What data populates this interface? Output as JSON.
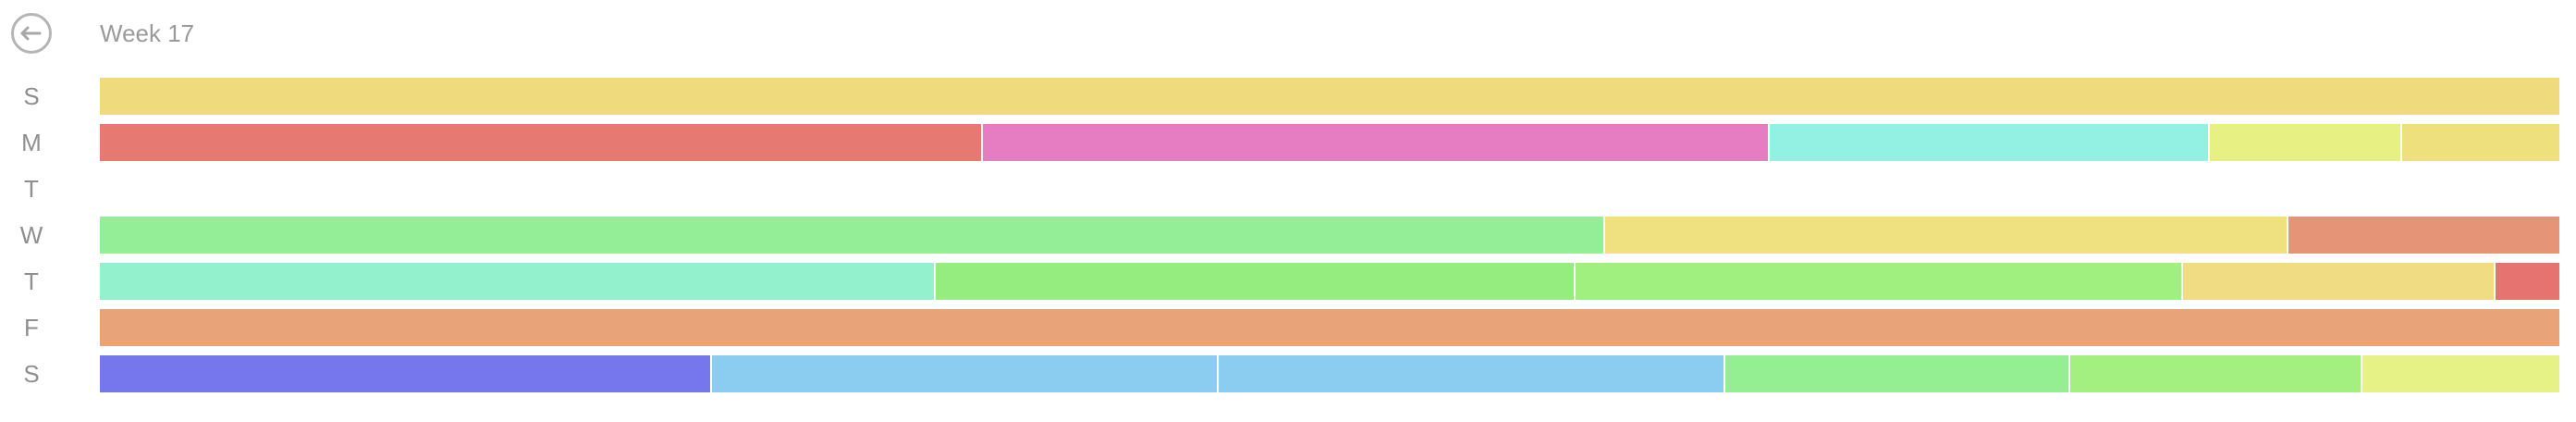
{
  "header": {
    "title": "Week 17",
    "back_icon": "arrow-left-circle-icon"
  },
  "days": [
    {
      "label": "S",
      "segments": [
        {
          "fraction": 1.0,
          "color": "#efdb7d"
        }
      ]
    },
    {
      "label": "M",
      "segments": [
        {
          "fraction": 0.359,
          "color": "#e67a73"
        },
        {
          "fraction": 0.32,
          "color": "#e67dc3"
        },
        {
          "fraction": 0.179,
          "color": "#92f1e2"
        },
        {
          "fraction": 0.078,
          "color": "#e6f083"
        },
        {
          "fraction": 0.064,
          "color": "#efe07e"
        }
      ]
    },
    {
      "label": "T",
      "segments": []
    },
    {
      "label": "W",
      "segments": [
        {
          "fraction": 0.612,
          "color": "#94ee97"
        },
        {
          "fraction": 0.278,
          "color": "#efe080"
        },
        {
          "fraction": 0.11,
          "color": "#e69477"
        }
      ]
    },
    {
      "label": "T",
      "segments": [
        {
          "fraction": 0.34,
          "color": "#94f1cd"
        },
        {
          "fraction": 0.26,
          "color": "#96ed7f"
        },
        {
          "fraction": 0.247,
          "color": "#9ff07e"
        },
        {
          "fraction": 0.127,
          "color": "#f0dc83"
        },
        {
          "fraction": 0.026,
          "color": "#e6736f"
        }
      ]
    },
    {
      "label": "F",
      "segments": [
        {
          "fraction": 1.0,
          "color": "#e9a378"
        }
      ]
    },
    {
      "label": "S",
      "segments": [
        {
          "fraction": 0.249,
          "color": "#7677ed"
        },
        {
          "fraction": 0.206,
          "color": "#8bcdf1"
        },
        {
          "fraction": 0.206,
          "color": "#8bcdf1"
        },
        {
          "fraction": 0.14,
          "color": "#93ef91"
        },
        {
          "fraction": 0.119,
          "color": "#a3ef7f"
        },
        {
          "fraction": 0.08,
          "color": "#e6f286"
        }
      ]
    }
  ]
}
